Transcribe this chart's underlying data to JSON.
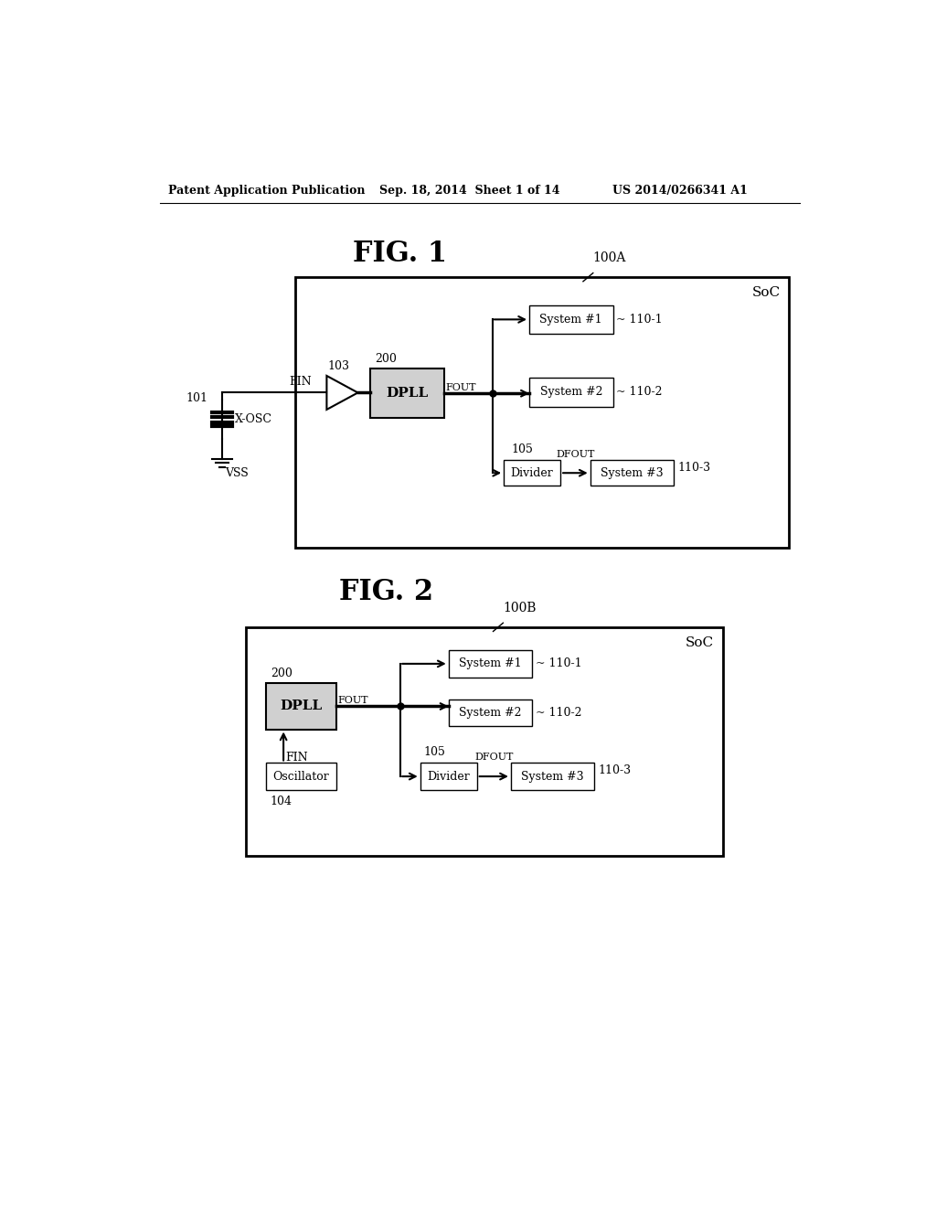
{
  "header_left": "Patent Application Publication",
  "header_mid": "Sep. 18, 2014  Sheet 1 of 14",
  "header_right": "US 2014/0266341 A1",
  "fig1_title": "FIG. 1",
  "fig2_title": "FIG. 2",
  "bg_color": "#ffffff",
  "text_color": "#000000",
  "dpll_fill": "#d0d0d0"
}
